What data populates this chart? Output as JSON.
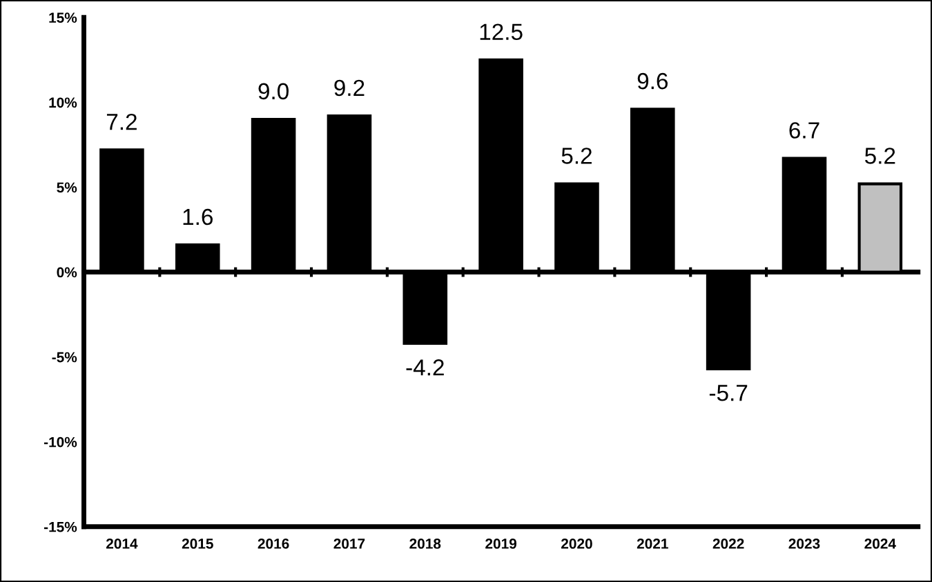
{
  "chart_data": {
    "type": "bar",
    "categories": [
      "2014",
      "2015",
      "2016",
      "2017",
      "2018",
      "2019",
      "2020",
      "2021",
      "2022",
      "2023",
      "2024"
    ],
    "values": [
      7.2,
      1.6,
      9.0,
      9.2,
      -4.2,
      12.5,
      5.2,
      9.6,
      -5.7,
      6.7,
      5.2
    ],
    "colors": [
      "#000000",
      "#000000",
      "#000000",
      "#000000",
      "#000000",
      "#000000",
      "#000000",
      "#000000",
      "#000000",
      "#000000",
      "#c0c0c0"
    ],
    "value_labels": [
      "7.2",
      "1.6",
      "9.0",
      "9.2",
      "-4.2",
      "12.5",
      "5.2",
      "9.6",
      "-5.7",
      "6.7",
      "5.2"
    ],
    "ylim": [
      -15,
      15
    ],
    "yticks": [
      {
        "value": -15,
        "label": "-15%"
      },
      {
        "value": -10,
        "label": "-10%"
      },
      {
        "value": -5,
        "label": "-5%"
      },
      {
        "value": 0,
        "label": "0%"
      },
      {
        "value": 5,
        "label": "5%"
      },
      {
        "value": 10,
        "label": "10%"
      },
      {
        "value": 15,
        "label": "15%"
      }
    ],
    "legend": false
  }
}
